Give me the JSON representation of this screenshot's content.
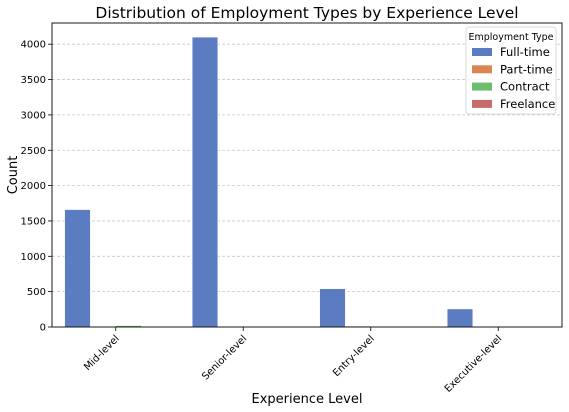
{
  "chart_data": {
    "type": "bar",
    "title": "Distribution of Employment Types by Experience Level",
    "xlabel": "Experience Level",
    "ylabel": "Count",
    "categories": [
      "Mid-level",
      "Senior-level",
      "Entry-level",
      "Executive-level"
    ],
    "series": [
      {
        "name": "Full-time",
        "values": [
          1660,
          4100,
          540,
          255
        ],
        "color": "#5b7cc0"
      },
      {
        "name": "Part-time",
        "values": [
          5,
          3,
          12,
          1
        ],
        "color": "#dc8554"
      },
      {
        "name": "Contract",
        "values": [
          20,
          6,
          5,
          3
        ],
        "color": "#6bbd6b"
      },
      {
        "name": "Freelance",
        "values": [
          3,
          2,
          3,
          0
        ],
        "color": "#c96b6b"
      }
    ],
    "ylim": [
      0,
      4300
    ],
    "yticks": [
      0,
      500,
      1000,
      1500,
      2000,
      2500,
      3000,
      3500,
      4000
    ],
    "grid": "y-dashed",
    "legend": {
      "title": "Employment Type",
      "placement": "top-right"
    }
  }
}
